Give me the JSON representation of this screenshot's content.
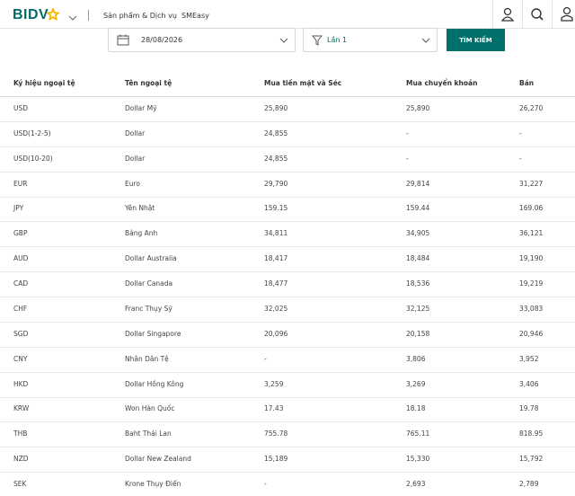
{
  "header": {
    "logo": "BIDV",
    "nav": [
      "Sản phẩm & Dịch vụ",
      "SMEasy"
    ]
  },
  "filters": {
    "date": "28/08/2026",
    "session": "Lần 1",
    "button": "TÌM KIẾM"
  },
  "table": {
    "columns": [
      "Ký hiệu ngoại tệ",
      "Tên ngoại tệ",
      "Mua tiền mặt và Séc",
      "Mua chuyển khoản",
      "Bán"
    ],
    "rows": [
      [
        "USD",
        "Dollar Mỹ",
        "25,890",
        "25,890",
        "26,270"
      ],
      [
        "USD(1-2-5)",
        "Dollar",
        "24,855",
        "-",
        "-"
      ],
      [
        "USD(10-20)",
        "Dollar",
        "24,855",
        "-",
        "-"
      ],
      [
        "EUR",
        "Euro",
        "29,790",
        "29,814",
        "31,227"
      ],
      [
        "JPY",
        "Yên Nhật",
        "159.15",
        "159.44",
        "169.06"
      ],
      [
        "GBP",
        "Bảng Anh",
        "34,811",
        "34,905",
        "36,121"
      ],
      [
        "AUD",
        "Dollar Australia",
        "18,417",
        "18,484",
        "19,190"
      ],
      [
        "CAD",
        "Dollar Canada",
        "18,477",
        "18,536",
        "19,219"
      ],
      [
        "CHF",
        "Franc Thụy Sỹ",
        "32,025",
        "32,125",
        "33,083"
      ],
      [
        "SGD",
        "Dollar Singapore",
        "20,096",
        "20,158",
        "20,946"
      ],
      [
        "CNY",
        "Nhân Dân Tệ",
        "-",
        "3,806",
        "3,952"
      ],
      [
        "HKD",
        "Dollar Hồng Kông",
        "3,259",
        "3,269",
        "3,406"
      ],
      [
        "KRW",
        "Won Hàn Quốc",
        "17.43",
        "18.18",
        "19.78"
      ],
      [
        "THB",
        "Baht Thái Lan",
        "755.78",
        "765.11",
        "818.95"
      ],
      [
        "NZD",
        "Dollar New Zealand",
        "15,189",
        "15,330",
        "15,792"
      ],
      [
        "SEK",
        "Krone Thụy Điển",
        "-",
        "2,693",
        "2,789"
      ]
    ]
  }
}
